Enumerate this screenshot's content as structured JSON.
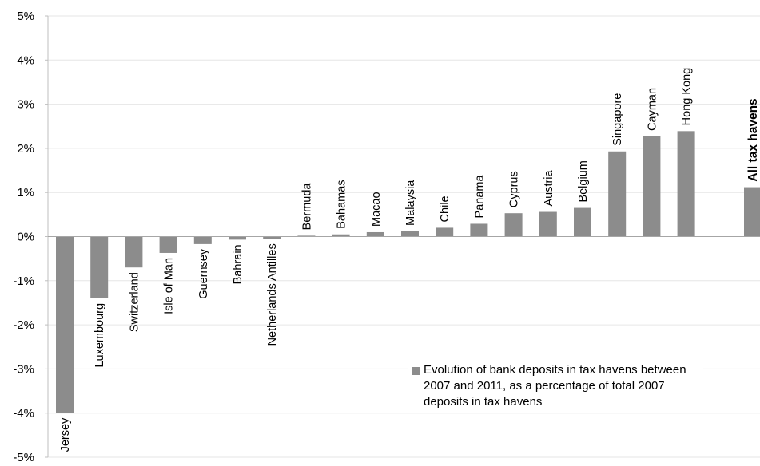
{
  "chart_data": {
    "type": "bar",
    "title": "",
    "xlabel": "",
    "ylabel": "",
    "ylim": [
      -5,
      5
    ],
    "yticks": [
      "-5%",
      "-4%",
      "-3%",
      "-2%",
      "-1%",
      "0%",
      "1%",
      "2%",
      "3%",
      "4%",
      "5%"
    ],
    "grid": true,
    "bar_color": "#8c8c8c",
    "categories": [
      "Jersey",
      "Luxembourg",
      "Switzerland",
      "Isle of Man",
      "Guernsey",
      "Bahrain",
      "Netherlands Antilles",
      "Bermuda",
      "Bahamas",
      "Macao",
      "Malaysia",
      "Chile",
      "Panama",
      "Cyprus",
      "Austria",
      "Belgium",
      "Singapore",
      "Cayman",
      "Hong Kong",
      "All tax havens"
    ],
    "values": [
      -4.0,
      -1.4,
      -0.7,
      -0.37,
      -0.17,
      -0.07,
      -0.05,
      0.02,
      0.05,
      0.1,
      0.12,
      0.2,
      0.29,
      0.53,
      0.56,
      0.65,
      1.93,
      2.27,
      2.39,
      1.12
    ],
    "legend": {
      "placement": "lower-right",
      "entries": [
        "Evolution of bank deposits in tax havens between 2007 and 2011, as a percentage of total 2007 deposits in tax havens"
      ]
    }
  }
}
